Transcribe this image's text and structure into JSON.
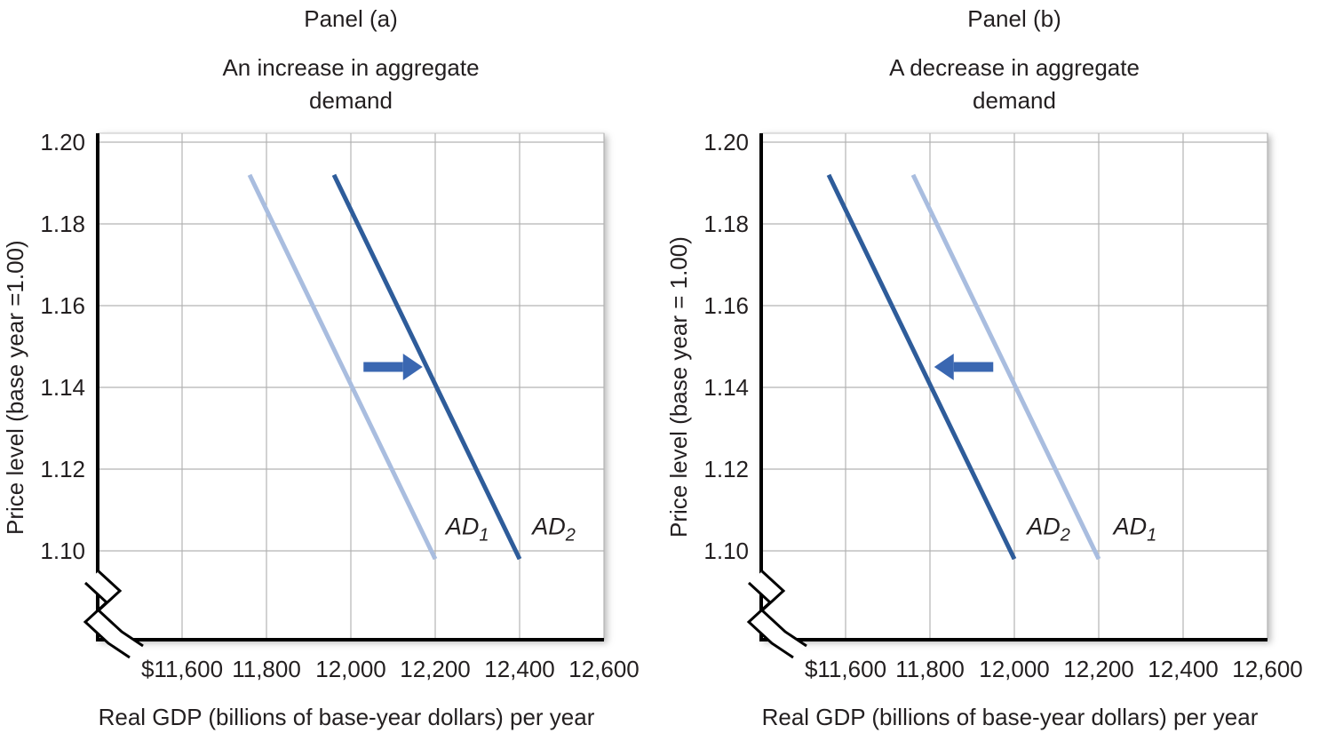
{
  "colors": {
    "ad_light": "#a9bddf",
    "ad_dark": "#2e5c9a",
    "arrow": "#3a67b1",
    "grid": "#b3b3b3",
    "axis": "#000000",
    "frame": "#c6c6c6",
    "text": "#231f20"
  },
  "chart_data": [
    {
      "type": "line",
      "panel": "a",
      "title": "Panel (a)",
      "subtitle": "An increase in aggregate demand",
      "subtitle_lines": [
        "An increase in aggregate",
        "demand"
      ],
      "xlabel": "Real GDP (billions of base-year dollars) per year",
      "ylabel": "Price level (base year =1.00)",
      "xlim": [
        11400,
        12600
      ],
      "ylim_shown": [
        1.1,
        1.2
      ],
      "x_ticks": [
        "$11,600",
        "11,800",
        "12,000",
        "12,200",
        "12,400",
        "12,600"
      ],
      "x_tick_values": [
        11600,
        11800,
        12000,
        12200,
        12400,
        12600
      ],
      "y_ticks": [
        "1.20",
        "1.18",
        "1.16",
        "1.14",
        "1.12",
        "1.10"
      ],
      "y_tick_values": [
        1.2,
        1.18,
        1.16,
        1.14,
        1.12,
        1.1
      ],
      "grid": true,
      "axis_break": true,
      "series": [
        {
          "name": "AD1",
          "label": {
            "text": "AD",
            "sub": "1"
          },
          "color_key": "ad_light",
          "points": [
            [
              11760,
              1.192
            ],
            [
              12200,
              1.098
            ]
          ],
          "label_at": [
            12225,
            1.104
          ]
        },
        {
          "name": "AD2",
          "label": {
            "text": "AD",
            "sub": "2"
          },
          "color_key": "ad_dark",
          "points": [
            [
              11960,
              1.192
            ],
            [
              12400,
              1.098
            ]
          ],
          "label_at": [
            12430,
            1.104
          ]
        }
      ],
      "shift_arrow": {
        "from": [
          12030,
          1.145
        ],
        "to": [
          12170,
          1.145
        ],
        "direction": "right"
      }
    },
    {
      "type": "line",
      "panel": "b",
      "title": "Panel (b)",
      "subtitle": "A decrease in aggregate demand",
      "subtitle_lines": [
        "A decrease in aggregate",
        "demand"
      ],
      "xlabel": "Real GDP (billions of base-year dollars) per year",
      "ylabel": "Price level (base year = 1.00)",
      "xlim": [
        11400,
        12600
      ],
      "ylim_shown": [
        1.1,
        1.2
      ],
      "x_ticks": [
        "$11,600",
        "11,800",
        "12,000",
        "12,200",
        "12,400",
        "12,600"
      ],
      "x_tick_values": [
        11600,
        11800,
        12000,
        12200,
        12400,
        12600
      ],
      "y_ticks": [
        "1.20",
        "1.18",
        "1.16",
        "1.14",
        "1.12",
        "1.10"
      ],
      "y_tick_values": [
        1.2,
        1.18,
        1.16,
        1.14,
        1.12,
        1.1
      ],
      "grid": true,
      "axis_break": true,
      "series": [
        {
          "name": "AD2",
          "label": {
            "text": "AD",
            "sub": "2"
          },
          "color_key": "ad_dark",
          "points": [
            [
              11560,
              1.192
            ],
            [
              12000,
              1.098
            ]
          ],
          "label_at": [
            12030,
            1.104
          ]
        },
        {
          "name": "AD1",
          "label": {
            "text": "AD",
            "sub": "1"
          },
          "color_key": "ad_light",
          "points": [
            [
              11760,
              1.192
            ],
            [
              12200,
              1.098
            ]
          ],
          "label_at": [
            12235,
            1.104
          ]
        }
      ],
      "shift_arrow": {
        "from": [
          11950,
          1.145
        ],
        "to": [
          11810,
          1.145
        ],
        "direction": "left"
      }
    }
  ]
}
